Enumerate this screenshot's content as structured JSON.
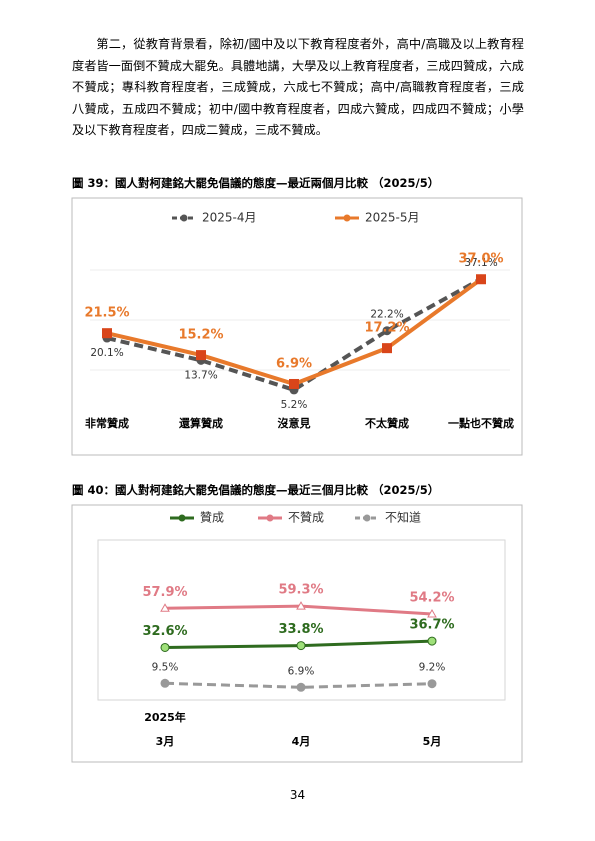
{
  "paragraph": "第二，從教育背景看，除初/國中及以下教育程度者外，高中/高職及以上教育程度者皆一面倒不贊成大罷免。具體地講，大學及以上教育程度者，三成四贊成，六成不贊成；專科教育程度者，三成贊成，六成七不贊成；高中/高職教育程度者，三成八贊成，五成四不贊成；初中/國中教育程度者，四成六贊成，四成四不贊成；小學及以下教育程度者，四成二贊成，三成不贊成。",
  "chart_data": [
    {
      "type": "line",
      "title": "圖 39：國人對柯建銘大罷免倡議的態度—最近兩個月比較 （2025/5）",
      "categories": [
        "非常贊成",
        "還算贊成",
        "沒意見",
        "不太贊成",
        "一點也不贊成"
      ],
      "series": [
        {
          "name": "2025-4月",
          "color": "#555555",
          "dashed": true,
          "values": [
            20.1,
            13.7,
            5.2,
            22.2,
            37.1
          ],
          "value_labels": [
            "20.1%",
            "13.7%",
            "5.2%",
            "22.2%",
            "37.1%"
          ]
        },
        {
          "name": "2025-5月",
          "color": "#e8792b",
          "dashed": false,
          "values": [
            21.5,
            15.2,
            6.9,
            17.2,
            37.0
          ],
          "value_labels": [
            "21.5%",
            "15.2%",
            "6.9%",
            "17.2%",
            "37.0%"
          ]
        }
      ]
    },
    {
      "type": "line",
      "title": "圖 40：國人對柯建銘大罷免倡議的態度—最近三個月比較 （2025/5）",
      "x_year_label": "2025年",
      "categories": [
        "3月",
        "4月",
        "5月"
      ],
      "series": [
        {
          "name": "贊成",
          "color": "#2e6b1f",
          "dashed": false,
          "values": [
            32.6,
            33.8,
            36.7
          ],
          "value_labels": [
            "32.6%",
            "33.8%",
            "36.7%"
          ]
        },
        {
          "name": "不贊成",
          "color": "#e07a85",
          "dashed": false,
          "values": [
            57.9,
            59.3,
            54.2
          ],
          "value_labels": [
            "57.9%",
            "59.3%",
            "54.2%"
          ]
        },
        {
          "name": "不知道",
          "color": "#999999",
          "dashed": true,
          "values": [
            9.5,
            6.9,
            9.2
          ],
          "value_labels": [
            "9.5%",
            "6.9%",
            "9.2%"
          ]
        }
      ]
    }
  ],
  "page_number": "34"
}
